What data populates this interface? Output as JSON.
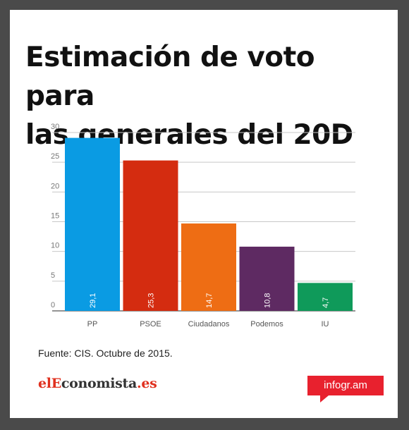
{
  "title_line1": "Estimación de voto para",
  "title_line2": "las generales del 20D",
  "source": "Fuente: CIS.  Octubre de 2015.",
  "logo": {
    "part1": "el",
    "part2": "E",
    "part3": "conomista",
    "part4": ".es"
  },
  "badge": "infogr.am",
  "chart_data": {
    "type": "bar",
    "categories": [
      "PP",
      "PSOE",
      "Ciudadanos",
      "Podemos",
      "IU"
    ],
    "values": [
      29.1,
      25.3,
      14.7,
      10.8,
      4.7
    ],
    "value_labels": [
      "29,1",
      "25,3",
      "14,7",
      "10,8",
      "4,7"
    ],
    "colors": [
      "#0a9be3",
      "#d42c10",
      "#ee6d14",
      "#5e2a62",
      "#0f9a5a"
    ],
    "ylim": [
      0,
      30
    ],
    "yticks": [
      0,
      5,
      10,
      15,
      20,
      25,
      30
    ],
    "grid": true,
    "xlabel": "",
    "ylabel": ""
  }
}
